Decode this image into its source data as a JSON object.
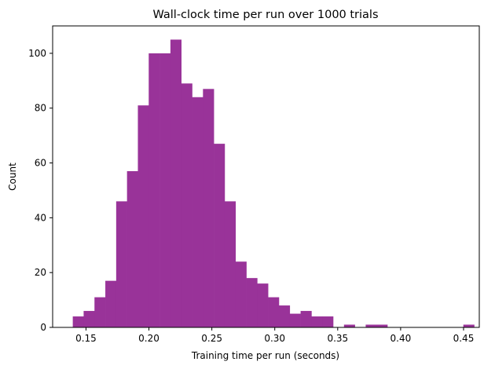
{
  "chart_data": {
    "type": "bar",
    "title": "Wall-clock time per run over 1000 trials",
    "xlabel": "Training time per run (seconds)",
    "ylabel": "Count",
    "xlim": [
      0.1235,
      0.4625
    ],
    "ylim": [
      0,
      110
    ],
    "xticks": [
      0.15,
      0.2,
      0.25,
      0.3,
      0.35,
      0.4,
      0.45
    ],
    "xtick_labels": [
      "0.15",
      "0.20",
      "0.25",
      "0.30",
      "0.35",
      "0.40",
      "0.45"
    ],
    "yticks": [
      0,
      20,
      40,
      60,
      80,
      100
    ],
    "ytick_labels": [
      "0",
      "20",
      "40",
      "60",
      "80",
      "100"
    ],
    "bar_color": "#993399",
    "bin_start": 0.1395,
    "bin_width": 0.00862,
    "counts": [
      4,
      6,
      11,
      17,
      46,
      57,
      81,
      100,
      100,
      105,
      89,
      84,
      87,
      67,
      46,
      24,
      18,
      16,
      11,
      8,
      5,
      6,
      4,
      4,
      0,
      1,
      0,
      1,
      1,
      0,
      0,
      0,
      0,
      0,
      0,
      0,
      1
    ],
    "grid": false,
    "legend": "none"
  }
}
